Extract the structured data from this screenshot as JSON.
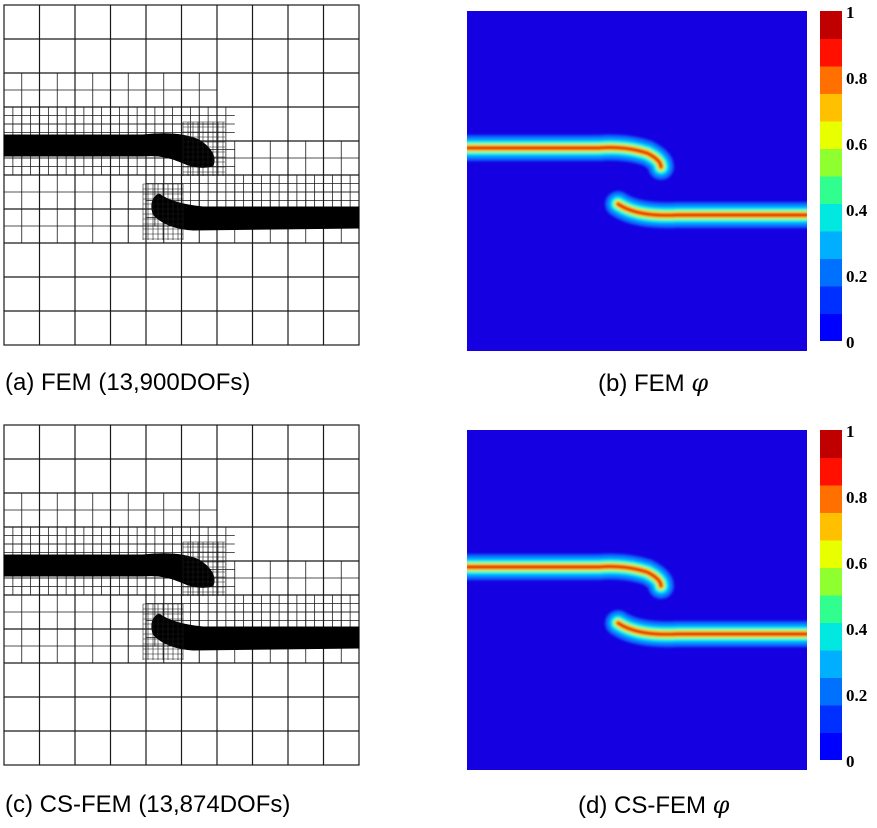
{
  "panels": [
    {
      "id": "a",
      "kind": "mesh",
      "caption": "(a) FEM (13,900DOFs)"
    },
    {
      "id": "b",
      "kind": "field",
      "caption": "(b) FEM",
      "symbol": "φ"
    },
    {
      "id": "c",
      "kind": "mesh",
      "caption": "(c) CS-FEM (13,874DOFs)"
    },
    {
      "id": "d",
      "kind": "field",
      "caption": "(d) CS-FEM",
      "symbol": "φ"
    }
  ],
  "colorbar": {
    "ticks": [
      "1",
      "0.8",
      "0.6",
      "0.4",
      "0.2",
      "0"
    ],
    "levels": [
      "#0000ff",
      "#0030ff",
      "#0070ff",
      "#00b0ff",
      "#00e8e0",
      "#30ff90",
      "#90ff30",
      "#e8ff00",
      "#ffc000",
      "#ff7000",
      "#ff1000",
      "#c00000"
    ]
  },
  "colors": {
    "background": "#1400e0",
    "crack": "#000000",
    "mesh_line": "#1a1a1a"
  }
}
